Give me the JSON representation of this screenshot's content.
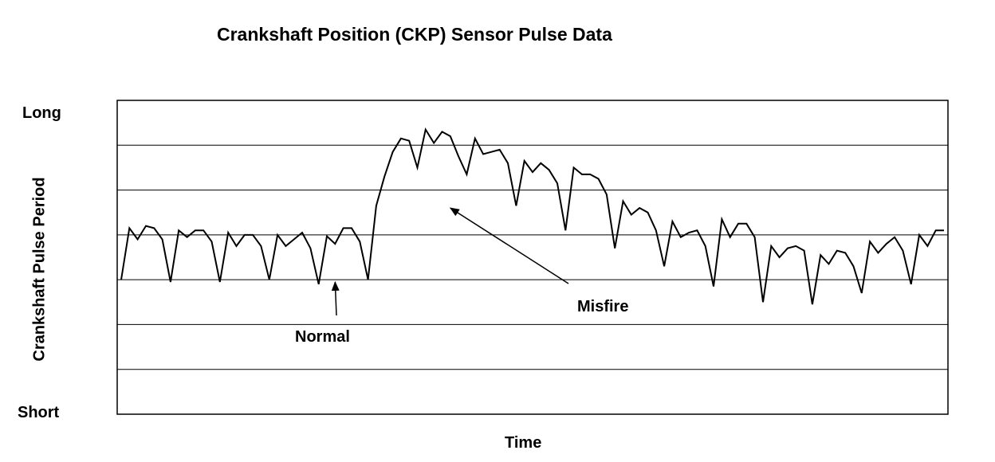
{
  "chart_data": {
    "type": "line",
    "title": "Crankshaft Position (CKP) Sensor Pulse Data",
    "xlabel": "Time",
    "ylabel": "Crankshaft Pulse Period",
    "y_top_label": "Long",
    "y_bottom_label": "Short",
    "ylim": [
      0,
      7
    ],
    "xlim": [
      0,
      100
    ],
    "grid": true,
    "annotations": [
      {
        "text": "Normal",
        "target": [
          26,
          2.95
        ]
      },
      {
        "text": "Misfire",
        "target": [
          40,
          4.6
        ]
      }
    ],
    "series": [
      {
        "x": [
          0,
          1,
          2,
          3,
          4,
          5,
          6,
          7,
          8,
          9,
          10,
          11,
          12,
          13,
          14,
          15,
          16,
          17,
          18,
          19,
          20,
          21,
          22,
          23,
          24,
          25,
          26,
          27,
          28,
          29,
          30,
          31,
          32,
          33,
          34,
          35,
          36,
          37,
          38,
          39,
          40,
          41,
          42,
          43,
          44,
          45,
          46,
          47,
          48,
          49,
          50,
          51,
          52,
          53,
          54,
          55,
          56,
          57,
          58,
          59,
          60,
          61,
          62,
          63,
          64,
          65,
          66,
          67,
          68,
          69,
          70,
          71,
          72,
          73,
          74,
          75,
          76,
          77,
          78,
          79,
          80,
          81,
          82,
          83,
          84,
          85,
          86,
          87,
          88,
          89,
          90,
          91,
          92,
          93,
          94,
          95,
          96,
          97,
          98,
          99,
          100
        ],
        "values": [
          3.0,
          4.15,
          3.9,
          4.2,
          4.15,
          3.9,
          2.95,
          4.1,
          3.95,
          4.1,
          4.1,
          3.85,
          2.95,
          4.05,
          3.75,
          4.0,
          4.0,
          3.75,
          3.0,
          4.0,
          3.75,
          3.9,
          4.05,
          3.7,
          2.9,
          3.97,
          3.8,
          4.15,
          4.15,
          3.85,
          3.0,
          4.65,
          5.3,
          5.85,
          6.15,
          6.1,
          5.5,
          6.35,
          6.05,
          6.3,
          6.2,
          5.75,
          5.35,
          6.15,
          5.8,
          5.85,
          5.9,
          5.6,
          4.65,
          5.65,
          5.4,
          5.6,
          5.45,
          5.15,
          4.1,
          5.5,
          5.35,
          5.35,
          5.25,
          4.9,
          3.7,
          4.75,
          4.45,
          4.6,
          4.5,
          4.1,
          3.3,
          4.3,
          3.95,
          4.05,
          4.1,
          3.75,
          2.85,
          4.35,
          3.95,
          4.25,
          4.25,
          3.95,
          2.5,
          3.75,
          3.5,
          3.7,
          3.75,
          3.65,
          2.45,
          3.55,
          3.35,
          3.65,
          3.6,
          3.3,
          2.7,
          3.85,
          3.6,
          3.8,
          3.95,
          3.65,
          2.9,
          4.0,
          3.75,
          4.1,
          4.1
        ]
      }
    ]
  }
}
